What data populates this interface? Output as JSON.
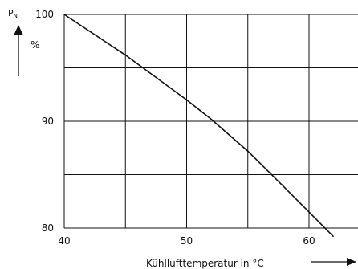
{
  "chart_data": {
    "type": "line",
    "y_symbol": "P",
    "y_symbol_subscript": "N",
    "ylabel": "%",
    "xlabel": "Kühllufttemperatur in °C",
    "xlim": [
      40,
      64
    ],
    "ylim": [
      80,
      100
    ],
    "x_ticks": [
      40,
      50,
      60
    ],
    "y_ticks": [
      80,
      90,
      100
    ],
    "x_gridlines": [
      40,
      45,
      50,
      55,
      60
    ],
    "y_gridlines": [
      80,
      85,
      90,
      95,
      100
    ],
    "grid": true,
    "series": [
      {
        "x": [
          40,
          45,
          50,
          52,
          55,
          58,
          60,
          62
        ],
        "y": [
          100,
          96.2,
          92,
          90.2,
          87.2,
          83.8,
          81.5,
          79.2
        ],
        "color": "#111111"
      }
    ]
  }
}
